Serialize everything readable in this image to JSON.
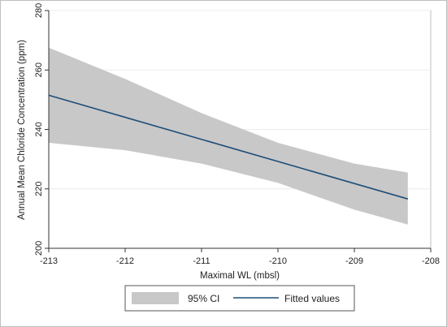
{
  "chart_data": {
    "type": "line",
    "xlabel": "Maximal WL (mbsl)",
    "ylabel": "Annual Mean Chloride Concentration (ppm)",
    "xlim": [
      -213,
      -208
    ],
    "ylim": [
      200,
      280
    ],
    "xticks": [
      -213,
      -212,
      -211,
      -210,
      -209,
      -208
    ],
    "yticks": [
      200,
      220,
      240,
      260,
      280
    ],
    "grid": true,
    "legend_position": "bottom",
    "series": [
      {
        "name": "Fitted values",
        "kind": "line",
        "color": "#1f4e79",
        "x": [
          -213,
          -208.3
        ],
        "y": [
          251.5,
          216.6
        ]
      },
      {
        "name": "95% CI",
        "kind": "band",
        "color": "#c8c8c8",
        "x": [
          -213,
          -212,
          -211,
          -210,
          -209,
          -208.3
        ],
        "upper": [
          267.5,
          257.0,
          245.5,
          235.5,
          228.5,
          225.5
        ],
        "lower": [
          235.5,
          233.0,
          228.5,
          222.0,
          213.0,
          208.0
        ]
      }
    ]
  }
}
